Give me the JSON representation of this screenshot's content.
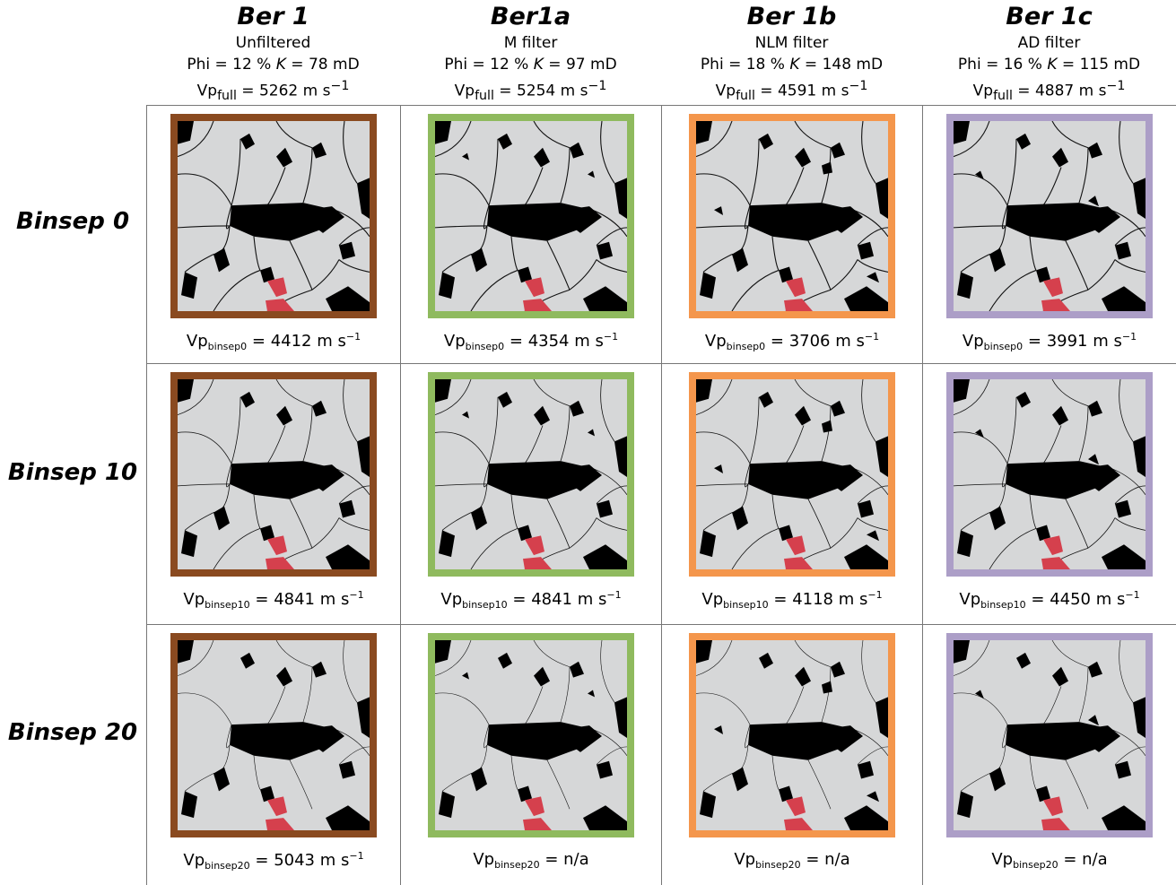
{
  "columns": [
    {
      "title": "Ber 1",
      "filter": "Unfiltered",
      "phi": "12",
      "k": "78",
      "vp_full": "5262",
      "color": "#8a4a20"
    },
    {
      "title": "Ber1a",
      "filter": "M filter",
      "phi": "12",
      "k": "97",
      "vp_full": "5254",
      "color": "#8fba5e"
    },
    {
      "title": "Ber 1b",
      "filter": "NLM filter",
      "phi": "18",
      "k": "148",
      "vp_full": "4591",
      "color": "#f4964c"
    },
    {
      "title": "Ber 1c",
      "filter": "AD filter",
      "phi": "16",
      "k": "115",
      "vp_full": "4887",
      "color": "#ac9ec7"
    }
  ],
  "rows": [
    {
      "label": "Binsep 0",
      "sub": "binsep0",
      "values": [
        "4412",
        "4354",
        "3706",
        "3991"
      ]
    },
    {
      "label": "Binsep 10",
      "sub": "binsep10",
      "values": [
        "4841",
        "4841",
        "4118",
        "4450"
      ]
    },
    {
      "label": "Binsep 20",
      "sub": "binsep20",
      "values": [
        "5043",
        "n/a",
        "n/a",
        "n/a"
      ]
    }
  ],
  "text": {
    "phi_prefix": "Phi = ",
    "percent": " %",
    "k_symbol": "K",
    "k_equals": " = ",
    "k_unit": " mD",
    "vp": "Vp",
    "full_sub": "full",
    "equals": " = ",
    "unit": " m  s",
    "unit_exp": "−1"
  },
  "colors": {
    "grain": "#d6d7d8",
    "pore": "#000000",
    "highlight": "#d5404d"
  }
}
